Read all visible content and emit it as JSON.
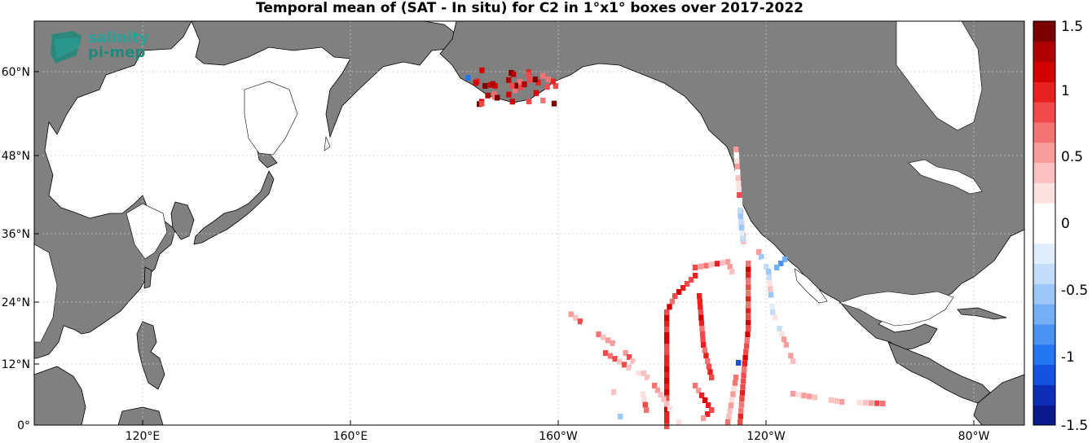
{
  "title": "Temporal mean of (SAT - In situ) for C2 in 1°x1° boxes over 2017-2022",
  "logo": {
    "line1": "salinity",
    "line2": "pi-mep"
  },
  "map": {
    "lon_range": [
      100,
      -75
    ],
    "lat_range": [
      0,
      66
    ],
    "land_color": "#808080",
    "ocean_color": "#ffffff",
    "x_ticks": [
      "120°E",
      "160°E",
      "160°W",
      "120°W",
      "80°W"
    ],
    "y_ticks": [
      "0°",
      "12°N",
      "24°N",
      "36°N",
      "48°N",
      "60°N"
    ]
  },
  "colorbar": {
    "range": [
      -1.5,
      1.5
    ],
    "labels": [
      "1.5",
      "1",
      "0.5",
      "0",
      "-0.5",
      "-1",
      "-1.5"
    ],
    "colors": [
      "#0a1a8c",
      "#0d2fb8",
      "#1552e0",
      "#2477f0",
      "#4a93f3",
      "#74aef5",
      "#9cc7f8",
      "#c2dcfa",
      "#e0eefc",
      "#ffffff",
      "#ffffff",
      "#fde0e0",
      "#fbc0c0",
      "#f89c9c",
      "#f47474",
      "#f04a4a",
      "#e82020",
      "#d40000",
      "#b00000",
      "#7a0000"
    ]
  }
}
